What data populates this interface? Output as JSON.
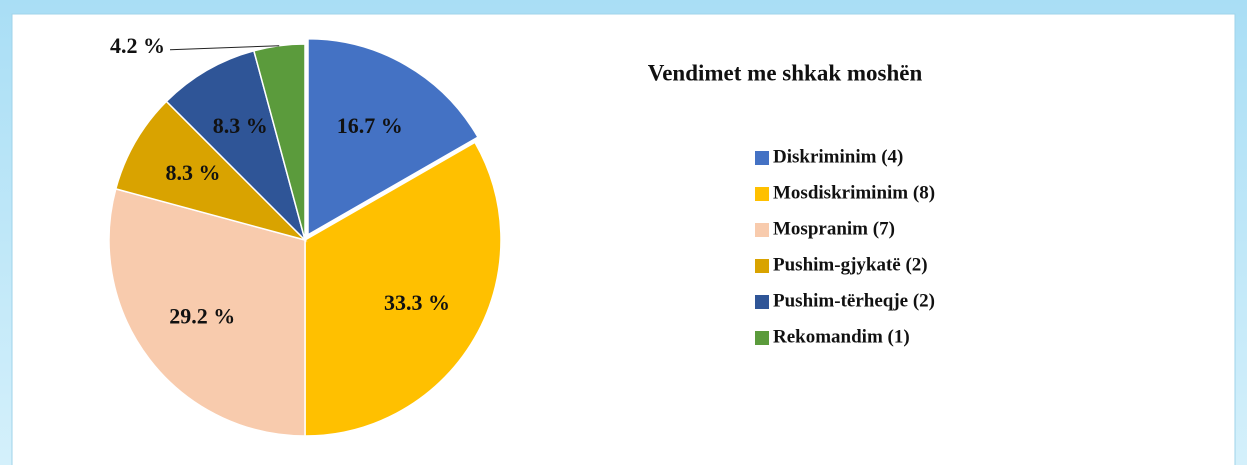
{
  "chart_data": {
    "type": "pie",
    "title": "Vendimet me shkak moshën",
    "categories": [
      "Diskriminim (4)",
      "Mosdiskriminim (8)",
      "Mospranim (7)",
      "Pushim-gjykatë (2)",
      "Pushim-tërheqje (2)",
      "Rekomandim (1)"
    ],
    "values": [
      16.7,
      33.3,
      29.2,
      8.3,
      8.3,
      4.2
    ],
    "value_labels": [
      "16.7 %",
      "33.3 %",
      "29.2 %",
      "8.3 %",
      "8.3 %",
      "4.2 %"
    ],
    "colors": [
      "#4472c4",
      "#ffc000",
      "#f8cbad",
      "#d9a300",
      "#2f5597",
      "#5b9b3c"
    ],
    "legend": "right"
  }
}
